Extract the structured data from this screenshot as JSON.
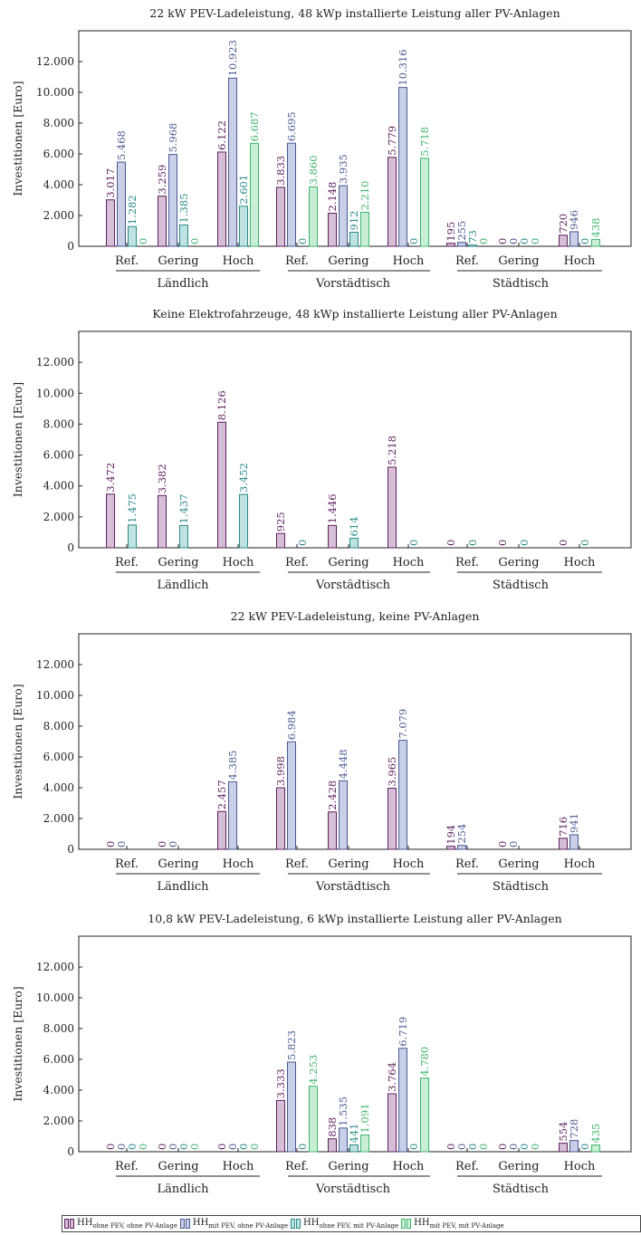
{
  "legend": [
    {
      "base": "HH",
      "sub": "ohne PEV, ohne PV-Anlage",
      "stroke": "#5e1f5e",
      "fill": "#d6bfd6"
    },
    {
      "base": "HH",
      "sub": "mit PEV, ohne PV-Anlage",
      "stroke": "#4a5a93",
      "fill": "#c8cfe6"
    },
    {
      "base": "HH",
      "sub": "ohne PEV, mit PV-Anlage",
      "stroke": "#2a8a8a",
      "fill": "#bfe3e1"
    },
    {
      "base": "HH",
      "sub": "mit PEV, mit PV-Anlage",
      "stroke": "#3fb56e",
      "fill": "#c8eed5"
    }
  ],
  "chart_data": [
    {
      "type": "bar",
      "title": "22 kW PEV-Ladeleistung, 48 kWp installierte Leistung aller PV-Anlagen",
      "ylabel": "Investitionen [Euro]",
      "ylim": [
        0,
        14000
      ],
      "yticks": [
        "0",
        "2.000",
        "4.000",
        "6.000",
        "8.000",
        "10.000",
        "12.000"
      ],
      "categories": [
        "Ref.",
        "Gering",
        "Hoch",
        "Ref.",
        "Gering",
        "Hoch",
        "Ref.",
        "Gering",
        "Hoch"
      ],
      "groups": [
        "Ländlich",
        "Vorstädtisch",
        "Städtisch"
      ],
      "values": [
        [
          3017,
          5468,
          1282,
          0
        ],
        [
          3259,
          5968,
          1385,
          0
        ],
        [
          6122,
          10923,
          2601,
          6687
        ],
        [
          3833,
          6695,
          0,
          3860
        ],
        [
          2148,
          3935,
          912,
          2210
        ],
        [
          5779,
          10316,
          0,
          5718
        ],
        [
          195,
          255,
          73,
          0
        ],
        [
          0,
          0,
          0,
          0
        ],
        [
          720,
          946,
          0,
          438
        ]
      ],
      "labels": [
        [
          "3.017",
          "5.468",
          "1.282",
          "0"
        ],
        [
          "3.259",
          "5.968",
          "1.385",
          "0"
        ],
        [
          "6.122",
          "10.923",
          "2.601",
          "6.687"
        ],
        [
          "3.833",
          "6.695",
          "0",
          "3.860"
        ],
        [
          "2.148",
          "3.935",
          "912",
          "2.210"
        ],
        [
          "5.779",
          "10.316",
          "0",
          "5.718"
        ],
        [
          "195",
          "255",
          "73",
          "0"
        ],
        [
          "0",
          "0",
          "0",
          "0"
        ],
        [
          "720",
          "946",
          "0",
          "438"
        ]
      ]
    },
    {
      "type": "bar",
      "title": "Keine Elektrofahrzeuge, 48 kWp installierte Leistung aller PV-Anlagen",
      "ylabel": "Investitionen [Euro]",
      "ylim": [
        0,
        14000
      ],
      "yticks": [
        "0",
        "2.000",
        "4.000",
        "6.000",
        "8.000",
        "10.000",
        "12.000"
      ],
      "categories": [
        "Ref.",
        "Gering",
        "Hoch",
        "Ref.",
        "Gering",
        "Hoch",
        "Ref.",
        "Gering",
        "Hoch"
      ],
      "groups": [
        "Ländlich",
        "Vorstädtisch",
        "Städtisch"
      ],
      "values": [
        [
          3472,
          null,
          1475,
          null
        ],
        [
          3382,
          null,
          1437,
          null
        ],
        [
          8126,
          null,
          3452,
          null
        ],
        [
          925,
          null,
          0,
          null
        ],
        [
          1446,
          null,
          614,
          null
        ],
        [
          5218,
          null,
          0,
          null
        ],
        [
          0,
          null,
          0,
          null
        ],
        [
          0,
          null,
          0,
          null
        ],
        [
          0,
          null,
          0,
          null
        ]
      ],
      "labels": [
        [
          "3.472",
          null,
          "1.475",
          null
        ],
        [
          "3.382",
          null,
          "1.437",
          null
        ],
        [
          "8.126",
          null,
          "3.452",
          null
        ],
        [
          "925",
          null,
          "0",
          null
        ],
        [
          "1.446",
          null,
          "614",
          null
        ],
        [
          "5.218",
          null,
          "0",
          null
        ],
        [
          "0",
          null,
          "0",
          null
        ],
        [
          "0",
          null,
          "0",
          null
        ],
        [
          "0",
          null,
          "0",
          null
        ]
      ]
    },
    {
      "type": "bar",
      "title": "22 kW PEV-Ladeleistung, keine PV-Anlagen",
      "ylabel": "Investitionen [Euro]",
      "ylim": [
        0,
        14000
      ],
      "yticks": [
        "0",
        "2.000",
        "4.000",
        "6.000",
        "8.000",
        "10.000",
        "12.000"
      ],
      "categories": [
        "Ref.",
        "Gering",
        "Hoch",
        "Ref.",
        "Gering",
        "Hoch",
        "Ref.",
        "Gering",
        "Hoch"
      ],
      "groups": [
        "Ländlich",
        "Vorstädtisch",
        "Städtisch"
      ],
      "values": [
        [
          0,
          0,
          null,
          null
        ],
        [
          0,
          0,
          null,
          null
        ],
        [
          2457,
          4385,
          null,
          null
        ],
        [
          3998,
          6984,
          null,
          null
        ],
        [
          2428,
          4448,
          null,
          null
        ],
        [
          3965,
          7079,
          null,
          null
        ],
        [
          194,
          254,
          null,
          null
        ],
        [
          0,
          0,
          null,
          null
        ],
        [
          716,
          941,
          null,
          null
        ]
      ],
      "labels": [
        [
          "0",
          "0",
          null,
          null
        ],
        [
          "0",
          "0",
          null,
          null
        ],
        [
          "2.457",
          "4.385",
          null,
          null
        ],
        [
          "3.998",
          "6.984",
          null,
          null
        ],
        [
          "2.428",
          "4.448",
          null,
          null
        ],
        [
          "3.965",
          "7.079",
          null,
          null
        ],
        [
          "194",
          "254",
          null,
          null
        ],
        [
          "0",
          "0",
          null,
          null
        ],
        [
          "716",
          "941",
          null,
          null
        ]
      ]
    },
    {
      "type": "bar",
      "title": "10,8 kW PEV-Ladeleistung, 6 kWp installierte Leistung aller PV-Anlagen",
      "ylabel": "Investitionen [Euro]",
      "ylim": [
        0,
        14000
      ],
      "yticks": [
        "0",
        "2.000",
        "4.000",
        "6.000",
        "8.000",
        "10.000",
        "12.000"
      ],
      "categories": [
        "Ref.",
        "Gering",
        "Hoch",
        "Ref.",
        "Gering",
        "Hoch",
        "Ref.",
        "Gering",
        "Hoch"
      ],
      "groups": [
        "Ländlich",
        "Vorstädtisch",
        "Städtisch"
      ],
      "values": [
        [
          0,
          0,
          0,
          0
        ],
        [
          0,
          0,
          0,
          0
        ],
        [
          0,
          0,
          0,
          0
        ],
        [
          3333,
          5823,
          0,
          4253
        ],
        [
          838,
          1535,
          441,
          1091
        ],
        [
          3764,
          6719,
          0,
          4780
        ],
        [
          0,
          0,
          0,
          0
        ],
        [
          0,
          0,
          0,
          0
        ],
        [
          554,
          728,
          0,
          435
        ]
      ],
      "labels": [
        [
          "0",
          "0",
          "0",
          "0"
        ],
        [
          "0",
          "0",
          "0",
          "0"
        ],
        [
          "0",
          "0",
          "0",
          "0"
        ],
        [
          "3.333",
          "5.823",
          "0",
          "4.253"
        ],
        [
          "838",
          "1.535",
          "441",
          "1.091"
        ],
        [
          "3.764",
          "6.719",
          "0",
          "4.780"
        ],
        [
          "0",
          "0",
          "0",
          "0"
        ],
        [
          "0",
          "0",
          "0",
          "0"
        ],
        [
          "554",
          "728",
          "0",
          "435"
        ]
      ]
    }
  ]
}
